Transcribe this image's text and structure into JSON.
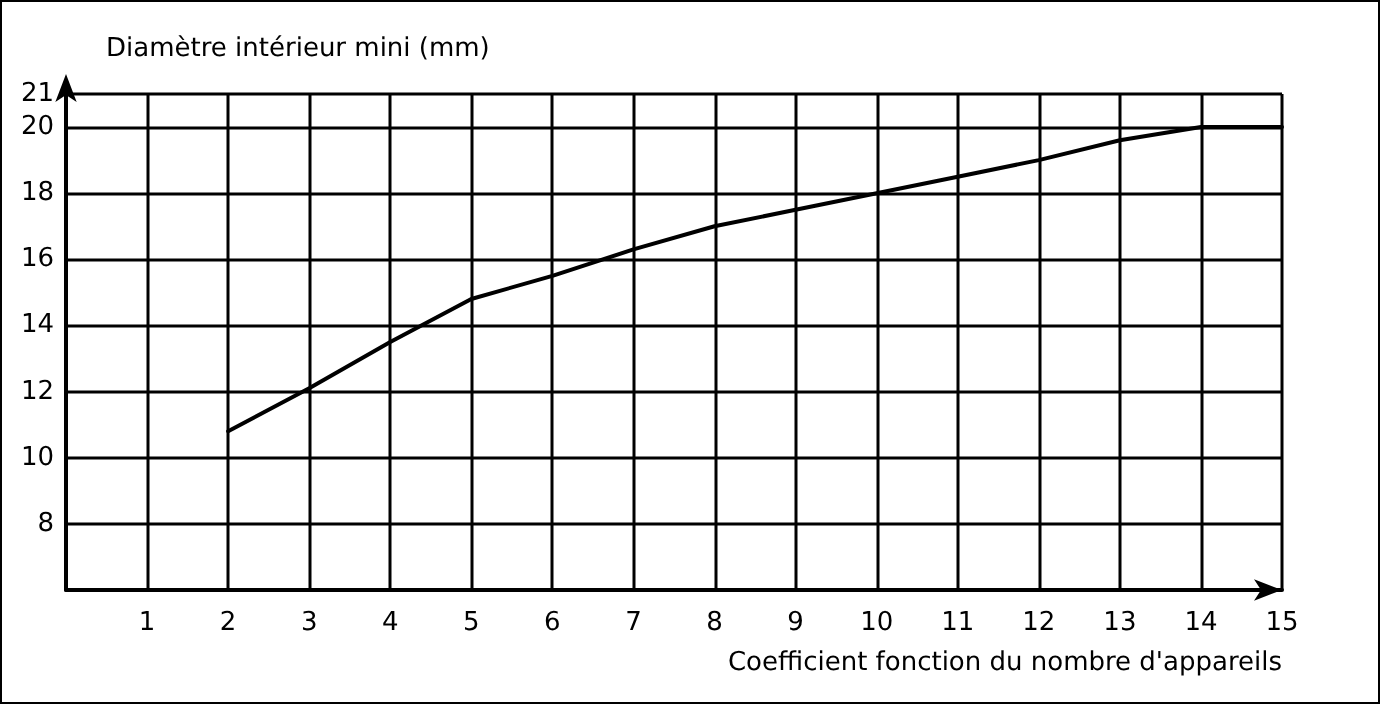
{
  "chart_data": {
    "type": "line",
    "xlabel": "Coefficient fonction du nombre d'appareils",
    "ylabel": "Diamètre intérieur mini (mm)",
    "categories": [
      null,
      "1",
      "2",
      "3",
      "4",
      "5",
      "6",
      "7",
      "8",
      "9",
      "10",
      "11",
      "12",
      "13",
      "14",
      "15"
    ],
    "series": [
      {
        "color": "#000000",
        "values": [
          null,
          null,
          10.8,
          12.1,
          13.5,
          14.8,
          15.5,
          16.3,
          17.0,
          17.5,
          18.0,
          18.5,
          19.0,
          19.6,
          20.0,
          20.0
        ]
      }
    ],
    "ylim": [
      6,
      21
    ],
    "yticks": [
      {
        "value": 6,
        "label": null
      },
      8,
      10,
      12,
      14,
      16,
      18,
      20,
      21
    ],
    "grid": true,
    "marker": "none",
    "line_style": "solid"
  }
}
